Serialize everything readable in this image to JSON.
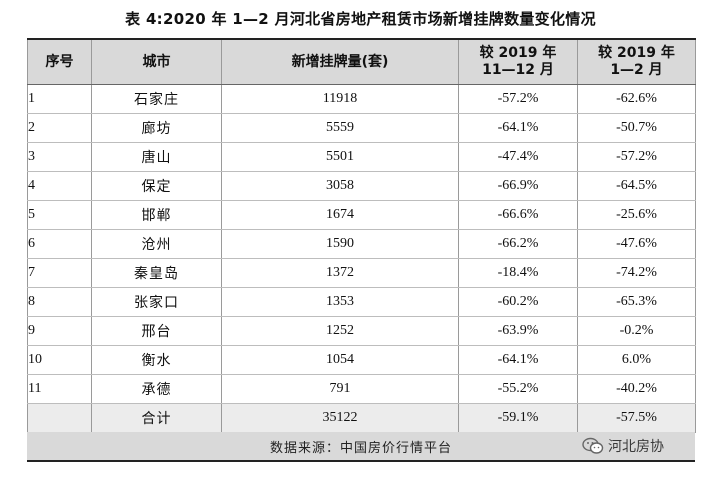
{
  "caption": "表 4:2020 年 1—2 月河北省房地产租赁市场新增挂牌数量变化情况",
  "headers": {
    "no": "序号",
    "city": "城市",
    "listings": "新增挂牌量(套)",
    "vs_1112_line1": "较 2019 年",
    "vs_1112_line2": "11—12 月",
    "vs_12_line1": "较 2019 年",
    "vs_12_line2": "1—2 月"
  },
  "rows": [
    {
      "no": "1",
      "city": "石家庄",
      "listings": "11918",
      "vs_1112": "-57.2%",
      "vs_12": "-62.6%"
    },
    {
      "no": "2",
      "city": "廊坊",
      "listings": "5559",
      "vs_1112": "-64.1%",
      "vs_12": "-50.7%"
    },
    {
      "no": "3",
      "city": "唐山",
      "listings": "5501",
      "vs_1112": "-47.4%",
      "vs_12": "-57.2%"
    },
    {
      "no": "4",
      "city": "保定",
      "listings": "3058",
      "vs_1112": "-66.9%",
      "vs_12": "-64.5%"
    },
    {
      "no": "5",
      "city": "邯郸",
      "listings": "1674",
      "vs_1112": "-66.6%",
      "vs_12": "-25.6%"
    },
    {
      "no": "6",
      "city": "沧州",
      "listings": "1590",
      "vs_1112": "-66.2%",
      "vs_12": "-47.6%"
    },
    {
      "no": "7",
      "city": "秦皇岛",
      "listings": "1372",
      "vs_1112": "-18.4%",
      "vs_12": "-74.2%"
    },
    {
      "no": "8",
      "city": "张家口",
      "listings": "1353",
      "vs_1112": "-60.2%",
      "vs_12": "-65.3%"
    },
    {
      "no": "9",
      "city": "邢台",
      "listings": "1252",
      "vs_1112": "-63.9%",
      "vs_12": "-0.2%"
    },
    {
      "no": "10",
      "city": "衡水",
      "listings": "1054",
      "vs_1112": "-64.1%",
      "vs_12": "6.0%"
    },
    {
      "no": "11",
      "city": "承德",
      "listings": "791",
      "vs_1112": "-55.2%",
      "vs_12": "-40.2%"
    }
  ],
  "total": {
    "label": "合计",
    "listings": "35122",
    "vs_1112": "-59.1%",
    "vs_12": "-57.5%"
  },
  "source": "数据来源：中国房价行情平台",
  "watermark": {
    "text": "河北房协",
    "icon": "wechat-icon"
  }
}
